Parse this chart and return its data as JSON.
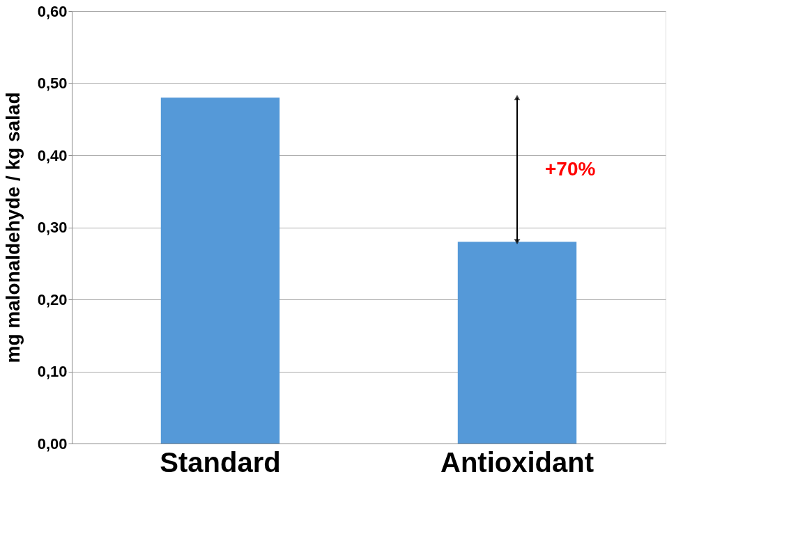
{
  "chart_data": {
    "type": "bar",
    "ylabel": "mg malonaldehyde / kg salad",
    "categories": [
      "Standard",
      "Antioxidant"
    ],
    "series": [
      {
        "color": "#5599d8",
        "values": [
          0.48,
          0.28
        ]
      }
    ],
    "ylim": [
      0,
      0.6
    ],
    "yticks": [
      {
        "value": 0,
        "label": "0,00"
      },
      {
        "value": 0.1,
        "label": "0,10"
      },
      {
        "value": 0.2,
        "label": "0,20"
      },
      {
        "value": 0.3,
        "label": "0,30"
      },
      {
        "value": 0.4,
        "label": "0,40"
      },
      {
        "value": 0.5,
        "label": "0,50"
      },
      {
        "value": 0.6,
        "label": "0,60"
      }
    ],
    "grid": "y",
    "annotations": [
      "+70%"
    ]
  }
}
